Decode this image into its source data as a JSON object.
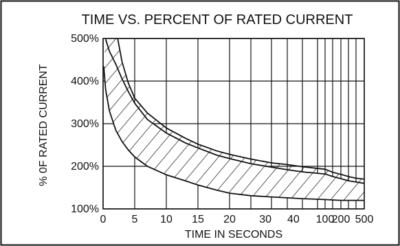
{
  "chart_data": {
    "type": "area",
    "title": "TIME VS. PERCENT OF RATED CURRENT",
    "xlabel": "TIME IN SECONDS",
    "ylabel": "% 0F RATED CURRENT",
    "x_scale": "piecewise: linear 0-30 s, compressed 30-500 s",
    "x_ticks": [
      {
        "value": 0,
        "label": "0"
      },
      {
        "value": 5,
        "label": "5"
      },
      {
        "value": 10,
        "label": "10"
      },
      {
        "value": 15,
        "label": "15"
      },
      {
        "value": 20,
        "label": "20"
      },
      {
        "value": 30,
        "label": "30"
      },
      {
        "value": 40,
        "label": "40"
      },
      {
        "value": 100,
        "label": "100"
      },
      {
        "value": 200,
        "label": "200"
      },
      {
        "value": 500,
        "label": "500"
      }
    ],
    "x_grid": [
      0,
      5,
      10,
      15,
      20,
      25,
      30,
      40,
      60,
      80,
      100,
      150,
      200,
      300,
      400,
      500
    ],
    "y_ticks": [
      {
        "value": 100,
        "label": "100%"
      },
      {
        "value": 200,
        "label": "200%"
      },
      {
        "value": 300,
        "label": "300%"
      },
      {
        "value": 400,
        "label": "400%"
      },
      {
        "value": 500,
        "label": "500%"
      }
    ],
    "ylim": [
      100,
      500
    ],
    "grid": true,
    "legend": "none",
    "series": [
      {
        "role": "lower-bound",
        "points": [
          [
            0.1,
            435
          ],
          [
            0.4,
            380
          ],
          [
            1,
            330
          ],
          [
            2,
            285
          ],
          [
            3,
            258
          ],
          [
            4,
            238
          ],
          [
            5,
            222
          ],
          [
            7,
            200
          ],
          [
            10,
            180
          ],
          [
            13,
            166
          ],
          [
            15,
            156
          ],
          [
            18,
            144
          ],
          [
            20,
            137
          ],
          [
            25,
            131
          ],
          [
            30,
            128
          ],
          [
            40,
            126
          ],
          [
            60,
            124
          ],
          [
            100,
            122
          ],
          [
            150,
            121
          ],
          [
            200,
            120
          ],
          [
            300,
            120
          ],
          [
            400,
            120
          ],
          [
            500,
            120
          ]
        ]
      },
      {
        "role": "upper-bound-inner",
        "points": [
          [
            0.4,
            498
          ],
          [
            1,
            470
          ],
          [
            2,
            440
          ],
          [
            3,
            405
          ],
          [
            4,
            375
          ],
          [
            5,
            348
          ],
          [
            7,
            310
          ],
          [
            10,
            278
          ],
          [
            13,
            255
          ],
          [
            15,
            243
          ],
          [
            18,
            226
          ],
          [
            20,
            218
          ],
          [
            25,
            206
          ],
          [
            30,
            198
          ],
          [
            40,
            192
          ],
          [
            60,
            187
          ],
          [
            100,
            182
          ],
          [
            150,
            176
          ],
          [
            200,
            171
          ],
          [
            300,
            166
          ],
          [
            400,
            163
          ],
          [
            500,
            160
          ]
        ]
      },
      {
        "role": "upper-bound-outer",
        "points": [
          [
            2.3,
            500
          ],
          [
            3,
            445
          ],
          [
            4,
            395
          ],
          [
            5,
            360
          ],
          [
            7,
            325
          ],
          [
            10,
            290
          ],
          [
            13,
            266
          ],
          [
            15,
            252
          ],
          [
            18,
            236
          ],
          [
            20,
            228
          ],
          [
            25,
            217
          ],
          [
            30,
            208
          ],
          [
            40,
            204
          ],
          [
            60,
            199
          ],
          [
            100,
            193
          ],
          [
            150,
            186
          ],
          [
            200,
            181
          ],
          [
            300,
            176
          ],
          [
            400,
            172
          ],
          [
            500,
            170
          ]
        ]
      }
    ],
    "styling": {
      "line_color": "#111111",
      "grid_color": "#111111",
      "background": "#ffffff",
      "hatch": "diagonal lines between lower-bound and upper-bound-inner"
    }
  }
}
